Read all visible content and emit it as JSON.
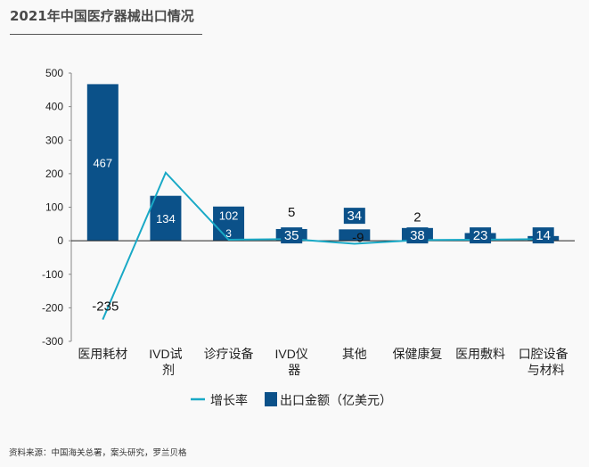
{
  "title": "2021年中国医疗器械出口情况",
  "source": "资料来源：中国海关总署，案头研究，罗兰贝格",
  "colors": {
    "bar": "#0b5189",
    "line": "#19a9c6"
  },
  "chart_data": {
    "type": "bar+line",
    "title": "2021年中国医疗器械出口情况",
    "categories": [
      "医用耗材",
      "IVD试剂",
      "诊疗设备",
      "IVD仪器",
      "其他",
      "保健康复",
      "医用敷料",
      "口腔设备与材料"
    ],
    "series": [
      {
        "name": "出口金额（亿美元）",
        "type": "bar",
        "values": [
          467,
          134,
          102,
          35,
          34,
          38,
          23,
          14
        ],
        "labels": [
          "467",
          "134",
          "102",
          "35",
          "34",
          "38",
          "23",
          "14"
        ]
      },
      {
        "name": "增长率",
        "type": "line",
        "values": [
          -235,
          203,
          3,
          5,
          -9,
          2,
          3,
          5
        ],
        "labels": [
          "-235",
          "",
          "3",
          "5",
          "-9",
          "2",
          "",
          ""
        ]
      }
    ],
    "yticks": [
      "500",
      "400",
      "300",
      "200",
      "100",
      "0",
      "-100",
      "-200",
      "-300"
    ],
    "ylim": [
      -300,
      500
    ],
    "grid": false,
    "legend": {
      "position": "bottom",
      "entries": [
        "增长率",
        "出口金额（亿美元）"
      ]
    }
  }
}
